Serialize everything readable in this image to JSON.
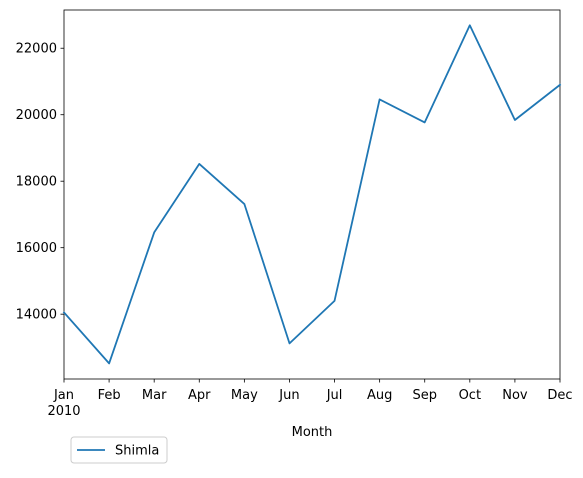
{
  "chart_data": {
    "type": "line",
    "x": [
      "Jan",
      "Feb",
      "Mar",
      "Apr",
      "May",
      "Jun",
      "Jul",
      "Aug",
      "Sep",
      "Oct",
      "Nov",
      "Dec"
    ],
    "x_year_label": "2010",
    "series": [
      {
        "name": "Shimla",
        "color": "#1f77b4",
        "values": [
          14050,
          12520,
          16460,
          18520,
          17310,
          13120,
          14400,
          20460,
          19770,
          22690,
          19840,
          20900
        ]
      }
    ],
    "xlabel": "Month",
    "ylabel": "",
    "ylim": [
      12050,
      23150
    ],
    "yticks": [
      14000,
      16000,
      18000,
      20000,
      22000
    ],
    "ytick_labels": [
      "14000",
      "16000",
      "18000",
      "20000",
      "22000"
    ],
    "grid": false,
    "legend_position": "bottom-left, below plot"
  }
}
